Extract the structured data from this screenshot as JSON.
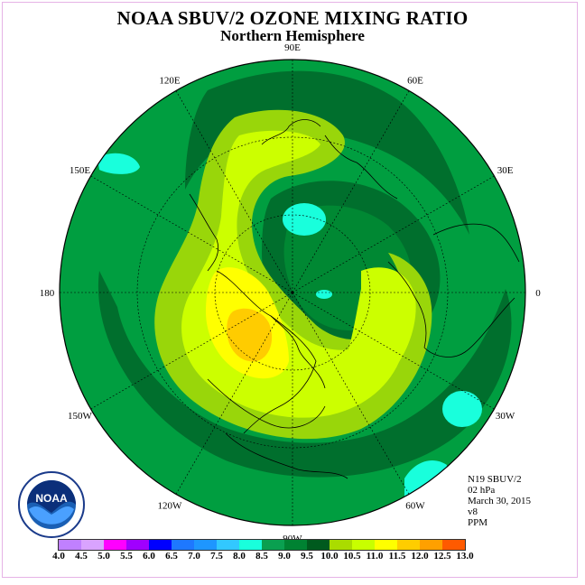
{
  "title": "NOAA SBUV/2 OZONE MIXING RATIO",
  "subtitle": "Northern Hemisphere",
  "info": {
    "instrument": "N19 SBUV/2",
    "level": "02 hPa",
    "date": "March 30, 2015",
    "version": "v8",
    "units": "PPM"
  },
  "logo_text": "NOAA",
  "longitude_labels": [
    {
      "label": "90E",
      "lon": 90
    },
    {
      "label": "60E",
      "lon": 60
    },
    {
      "label": "30E",
      "lon": 30
    },
    {
      "label": "0",
      "lon": 0
    },
    {
      "label": "30W",
      "lon": -30
    },
    {
      "label": "60W",
      "lon": -60
    },
    {
      "label": "90W",
      "lon": -90
    },
    {
      "label": "120W",
      "lon": -120
    },
    {
      "label": "150W",
      "lon": -150
    },
    {
      "label": "180",
      "lon": 180
    },
    {
      "label": "150E",
      "lon": 150
    },
    {
      "label": "120E",
      "lon": 120
    }
  ],
  "colorbar": {
    "ticks": [
      "4.0",
      "4.5",
      "5.0",
      "5.5",
      "6.0",
      "6.5",
      "7.0",
      "7.5",
      "8.0",
      "8.5",
      "9.0",
      "9.5",
      "10.0",
      "10.5",
      "11.0",
      "11.5",
      "12.0",
      "12.5",
      "13.0"
    ],
    "colors": [
      "#c080ff",
      "#d9a3ff",
      "#ff00ff",
      "#a000ff",
      "#0000ff",
      "#1e78ff",
      "#1e96ff",
      "#32c8ff",
      "#19ffdc",
      "#0aa050",
      "#008232",
      "#005a1e",
      "#aadc00",
      "#c8ff00",
      "#ffff00",
      "#ffcd00",
      "#ffa000",
      "#ff5a00",
      "#ff0000",
      "#7a4a2a"
    ]
  },
  "colors": {
    "background_field": "#009e40",
    "dark_band": "#006f2d",
    "mid_band": "#008833",
    "light_green": "#99d60a",
    "yellow_green": "#ccff00",
    "yellow": "#ffff00",
    "orange": "#ffcc00",
    "deep_orange": "#ffa000",
    "cyan": "#19ffdc"
  }
}
